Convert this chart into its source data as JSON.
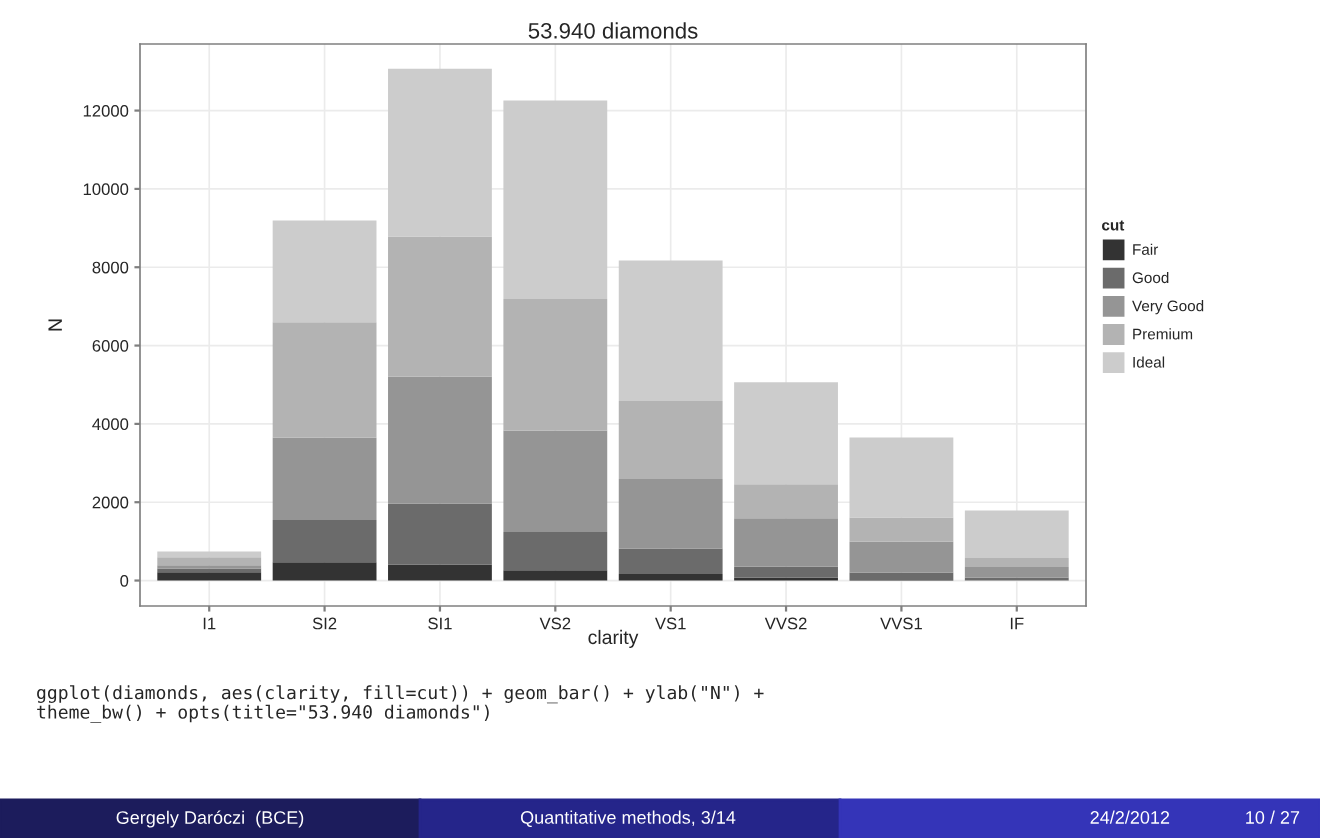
{
  "chart_data": {
    "type": "bar",
    "title": "53.940 diamonds",
    "xlabel": "clarity",
    "ylabel": "N",
    "legend_title": "cut",
    "stacked": true,
    "legend": "right",
    "grid": true,
    "categories": [
      "I1",
      "SI2",
      "SI1",
      "VS2",
      "VS1",
      "VVS2",
      "VVS1",
      "IF"
    ],
    "series": [
      {
        "name": "Fair",
        "color": "#333333",
        "values": [
          210,
          466,
          408,
          261,
          170,
          69,
          17,
          9
        ]
      },
      {
        "name": "Good",
        "color": "#6b6b6b",
        "values": [
          96,
          1081,
          1560,
          978,
          648,
          286,
          186,
          71
        ]
      },
      {
        "name": "Very Good",
        "color": "#959595",
        "values": [
          84,
          2100,
          3240,
          2591,
          1775,
          1235,
          789,
          268
        ]
      },
      {
        "name": "Premium",
        "color": "#b3b3b3",
        "values": [
          205,
          2949,
          3575,
          3357,
          1989,
          870,
          616,
          230
        ]
      },
      {
        "name": "Ideal",
        "color": "#cccccc",
        "values": [
          146,
          2598,
          4282,
          5071,
          3589,
          2606,
          2047,
          1212
        ]
      }
    ],
    "ylim": [
      -650,
      13700
    ],
    "yticks": [
      0,
      2000,
      4000,
      6000,
      8000,
      10000,
      12000
    ],
    "annotations": [
      "ggplot(diamonds, aes(clarity, fill=cut)) + geom_bar() + ylab(\"N\") +\ntheme_bw() + opts(title=\"53.940 diamonds\")",
      "Gergely Daróczi  (BCE)",
      "Quantitative methods, 3/14",
      "24/2/2012",
      "10 / 27"
    ]
  }
}
